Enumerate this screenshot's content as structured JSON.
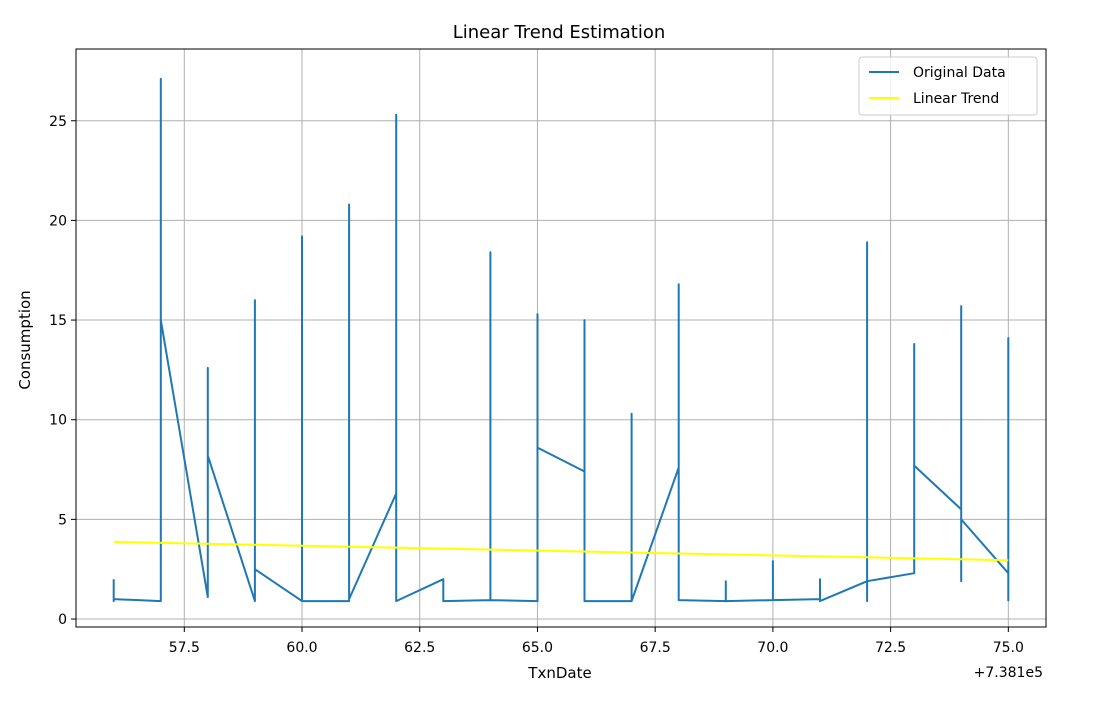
{
  "chart_data": {
    "type": "line",
    "title": "Linear Trend Estimation",
    "xlabel": "TxnDate",
    "ylabel": "Consumption",
    "x_offset_label": "+7.381e5",
    "xlim": [
      55.2,
      75.8
    ],
    "ylim": [
      -0.4,
      28.6
    ],
    "x_ticks": [
      57.5,
      60.0,
      62.5,
      65.0,
      67.5,
      70.0,
      72.5,
      75.0
    ],
    "x_tick_labels": [
      "57.5",
      "60.0",
      "62.5",
      "65.0",
      "67.5",
      "70.0",
      "72.5",
      "75.0"
    ],
    "y_ticks": [
      0,
      5,
      10,
      15,
      20,
      25
    ],
    "y_tick_labels": [
      "0",
      "5",
      "10",
      "15",
      "20",
      "25"
    ],
    "grid": true,
    "legend_position": "top-right",
    "series": [
      {
        "name": "Original Data",
        "color": "#1f77b4",
        "x": [
          56,
          56,
          56,
          57,
          57,
          57,
          58,
          58,
          58,
          58,
          59,
          59,
          59,
          59,
          60,
          60,
          60,
          60,
          61,
          61,
          61,
          61,
          62,
          62,
          62,
          62,
          63,
          63,
          63,
          64,
          64,
          64,
          65,
          65,
          65,
          66,
          66,
          66,
          66,
          67,
          67,
          67,
          68,
          68,
          68,
          69,
          69,
          69,
          70,
          70,
          70,
          71,
          71,
          71,
          72,
          72,
          72,
          72,
          73,
          73,
          73,
          74,
          74,
          74,
          74,
          75,
          75,
          75
        ],
        "y": [
          2.0,
          0.9,
          1.0,
          0.9,
          27.1,
          15.0,
          1.1,
          12.6,
          9.8,
          8.2,
          0.9,
          16.0,
          2.2,
          2.5,
          0.9,
          19.2,
          7.2,
          0.9,
          0.9,
          20.8,
          8.2,
          1.0,
          6.3,
          25.3,
          9.3,
          0.9,
          2.0,
          0.9,
          0.9,
          0.95,
          18.4,
          0.95,
          0.9,
          15.3,
          8.6,
          7.4,
          15.0,
          4.1,
          0.9,
          0.9,
          10.3,
          0.9,
          7.6,
          16.8,
          0.95,
          0.9,
          1.9,
          0.9,
          0.95,
          2.9,
          0.95,
          1.0,
          2.0,
          0.9,
          1.9,
          18.9,
          0.9,
          1.9,
          2.3,
          13.8,
          7.7,
          5.5,
          15.7,
          1.9,
          5.0,
          2.3,
          14.1,
          0.9
        ]
      },
      {
        "name": "Linear Trend",
        "color": "#ffff00",
        "x": [
          56,
          75
        ],
        "y": [
          3.87,
          2.95
        ]
      }
    ]
  }
}
